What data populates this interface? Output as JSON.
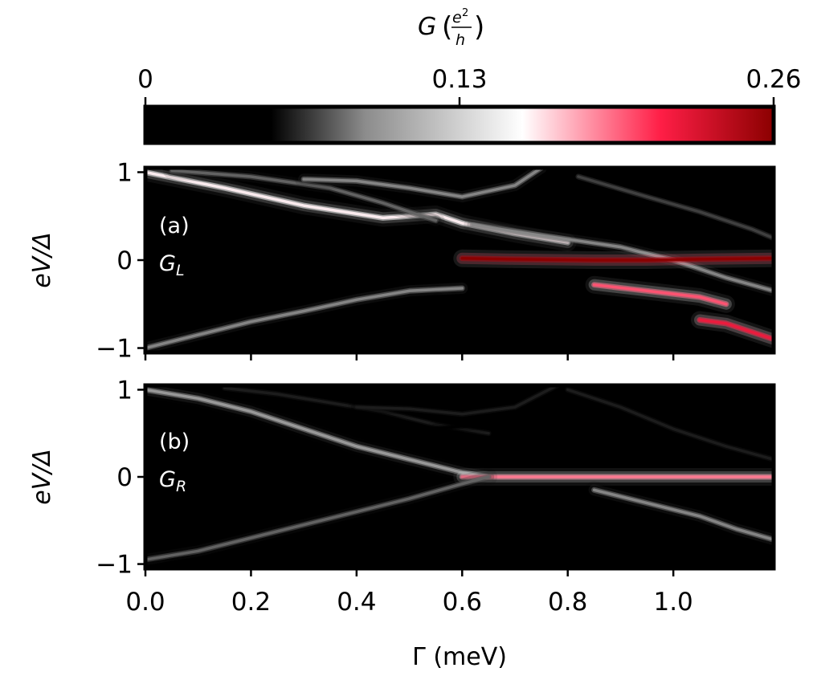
{
  "chart_data": [
    {
      "type": "heatmap",
      "panel_label": "(a)",
      "title": "G_L",
      "title_main": "G",
      "title_sub": "L",
      "xlabel": "Γ (meV)",
      "ylabel": "eV/Δ",
      "xlim": [
        0.0,
        1.19
      ],
      "ylim": [
        -1.05,
        1.05
      ],
      "xticks": [
        0.0,
        0.2,
        0.4,
        0.6,
        0.8,
        1.0
      ],
      "yticks": [
        -1,
        0,
        1
      ],
      "ytick_labels": [
        "−1",
        "0",
        "1"
      ],
      "peaks": [
        {
          "name": "top-left-branch-a",
          "points": [
            [
              0.0,
              1.0
            ],
            [
              0.15,
              0.82
            ],
            [
              0.3,
              0.62
            ],
            [
              0.45,
              0.48
            ],
            [
              0.55,
              0.52
            ],
            [
              0.6,
              0.42
            ],
            [
              0.7,
              0.3
            ],
            [
              0.8,
              0.2
            ]
          ],
          "amp": 0.16
        },
        {
          "name": "top-left-branch-b",
          "points": [
            [
              0.05,
              1.02
            ],
            [
              0.2,
              0.95
            ],
            [
              0.35,
              0.82
            ],
            [
              0.45,
              0.65
            ],
            [
              0.55,
              0.45
            ]
          ],
          "amp": 0.08
        },
        {
          "name": "top-branch-c",
          "points": [
            [
              0.3,
              0.92
            ],
            [
              0.4,
              0.9
            ],
            [
              0.5,
              0.82
            ],
            [
              0.6,
              0.72
            ],
            [
              0.7,
              0.85
            ],
            [
              0.75,
              1.05
            ]
          ],
          "amp": 0.09
        },
        {
          "name": "top-branch-d",
          "points": [
            [
              0.62,
              0.4
            ],
            [
              0.75,
              0.28
            ],
            [
              0.9,
              0.15
            ],
            [
              1.0,
              0.0
            ],
            [
              1.1,
              -0.2
            ],
            [
              1.19,
              -0.35
            ]
          ],
          "amp": 0.09
        },
        {
          "name": "upper-right-arc",
          "points": [
            [
              0.82,
              0.95
            ],
            [
              0.95,
              0.72
            ],
            [
              1.05,
              0.55
            ],
            [
              1.15,
              0.35
            ],
            [
              1.19,
              0.25
            ]
          ],
          "amp": 0.07
        },
        {
          "name": "zero-mode-a",
          "points": [
            [
              0.6,
              0.02
            ],
            [
              0.7,
              0.01
            ],
            [
              0.85,
              0.0
            ],
            [
              0.95,
              0.0
            ],
            [
              1.05,
              0.01
            ],
            [
              1.19,
              0.02
            ]
          ],
          "amp": 0.26
        },
        {
          "name": "lower-right-branch",
          "points": [
            [
              0.85,
              -0.28
            ],
            [
              0.95,
              -0.35
            ],
            [
              1.05,
              -0.42
            ],
            [
              1.1,
              -0.5
            ]
          ],
          "amp": 0.2
        },
        {
          "name": "lower-right-tail",
          "points": [
            [
              1.05,
              -0.68
            ],
            [
              1.1,
              -0.72
            ],
            [
              1.15,
              -0.82
            ],
            [
              1.19,
              -0.9
            ]
          ],
          "amp": 0.22
        },
        {
          "name": "bottom-branch-a",
          "points": [
            [
              0.0,
              -1.0
            ],
            [
              0.1,
              -0.85
            ],
            [
              0.2,
              -0.7
            ],
            [
              0.3,
              -0.58
            ],
            [
              0.4,
              -0.45
            ],
            [
              0.5,
              -0.35
            ],
            [
              0.6,
              -0.32
            ]
          ],
          "amp": 0.09
        },
        {
          "name": "bottom-branch-b",
          "points": [
            [
              0.15,
              -1.0
            ],
            [
              0.25,
              -0.85
            ],
            [
              0.35,
              -0.7
            ],
            [
              0.45,
              -0.55
            ],
            [
              0.55,
              -0.45
            ]
          ],
          "amp": 0.05
        }
      ]
    },
    {
      "type": "heatmap",
      "panel_label": "(b)",
      "title": "G_R",
      "title_main": "G",
      "title_sub": "R",
      "xlabel": "Γ (meV)",
      "ylabel": "eV/Δ",
      "xlim": [
        0.0,
        1.19
      ],
      "ylim": [
        -1.05,
        1.05
      ],
      "xticks": [
        0.0,
        0.2,
        0.4,
        0.6,
        0.8,
        1.0
      ],
      "xtick_labels": [
        "0.0",
        "0.2",
        "0.4",
        "0.6",
        "0.8",
        "1.0"
      ],
      "yticks": [
        -1,
        0,
        1
      ],
      "ytick_labels": [
        "−1",
        "0",
        "1"
      ],
      "peaks": [
        {
          "name": "top-left-branch-a",
          "points": [
            [
              0.0,
              1.0
            ],
            [
              0.1,
              0.9
            ],
            [
              0.2,
              0.75
            ],
            [
              0.3,
              0.55
            ],
            [
              0.4,
              0.35
            ],
            [
              0.5,
              0.2
            ],
            [
              0.6,
              0.05
            ],
            [
              0.65,
              0.0
            ]
          ],
          "amp": 0.1
        },
        {
          "name": "top-left-branch-b",
          "points": [
            [
              0.15,
              1.02
            ],
            [
              0.25,
              0.95
            ],
            [
              0.35,
              0.85
            ],
            [
              0.45,
              0.75
            ],
            [
              0.55,
              0.6
            ],
            [
              0.65,
              0.5
            ]
          ],
          "amp": 0.06
        },
        {
          "name": "top-branch-c",
          "points": [
            [
              0.4,
              0.8
            ],
            [
              0.5,
              0.78
            ],
            [
              0.6,
              0.72
            ],
            [
              0.7,
              0.8
            ],
            [
              0.78,
              1.05
            ]
          ],
          "amp": 0.06
        },
        {
          "name": "top-branch-d",
          "points": [
            [
              0.55,
              0.55
            ],
            [
              0.65,
              0.62
            ],
            [
              0.75,
              0.72
            ],
            [
              0.85,
              0.9
            ],
            [
              0.9,
              1.0
            ]
          ],
          "amp": 0.05
        },
        {
          "name": "upper-right-arc",
          "points": [
            [
              0.8,
              1.0
            ],
            [
              0.9,
              0.8
            ],
            [
              1.0,
              0.55
            ],
            [
              1.1,
              0.35
            ],
            [
              1.19,
              0.2
            ]
          ],
          "amp": 0.06
        },
        {
          "name": "upper-right-short",
          "points": [
            [
              1.1,
              0.7
            ],
            [
              1.15,
              0.72
            ],
            [
              1.19,
              0.75
            ]
          ],
          "amp": 0.05
        },
        {
          "name": "zero-mode-b",
          "points": [
            [
              0.6,
              0.0
            ],
            [
              0.7,
              0.0
            ],
            [
              0.85,
              0.0
            ],
            [
              0.95,
              0.0
            ],
            [
              1.05,
              0.0
            ],
            [
              1.19,
              0.0
            ]
          ],
          "amp": 0.19
        },
        {
          "name": "lower-right-branch",
          "points": [
            [
              0.85,
              -0.15
            ],
            [
              0.95,
              -0.3
            ],
            [
              1.05,
              -0.45
            ],
            [
              1.12,
              -0.6
            ],
            [
              1.19,
              -0.72
            ]
          ],
          "amp": 0.09
        },
        {
          "name": "bottom-branch-a",
          "points": [
            [
              0.0,
              -0.95
            ],
            [
              0.1,
              -0.85
            ],
            [
              0.2,
              -0.7
            ],
            [
              0.3,
              -0.55
            ],
            [
              0.4,
              -0.4
            ],
            [
              0.5,
              -0.25
            ],
            [
              0.6,
              -0.08
            ],
            [
              0.65,
              0.0
            ]
          ],
          "amp": 0.08
        },
        {
          "name": "bottom-branch-b",
          "points": [
            [
              0.05,
              -1.02
            ],
            [
              0.2,
              -0.98
            ],
            [
              0.35,
              -0.92
            ],
            [
              0.5,
              -0.85
            ],
            [
              0.6,
              -0.8
            ]
          ],
          "amp": 0.04
        }
      ]
    }
  ],
  "colorbar": {
    "label_main": "G",
    "label_frac_num": "e",
    "label_frac_sup": "2",
    "label_frac_den": "h",
    "min": 0,
    "max": 0.26,
    "ticks": [
      0,
      0.13,
      0.26
    ],
    "tick_labels": [
      "0",
      "0.13",
      "0.26"
    ],
    "colormap": [
      {
        "value": 0.0,
        "color": "#000000"
      },
      {
        "value": 0.2,
        "color": "#000000"
      },
      {
        "value": 0.35,
        "color": "#8c8c8c"
      },
      {
        "value": 0.6,
        "color": "#ffffff"
      },
      {
        "value": 0.82,
        "color": "#ff1e46"
      },
      {
        "value": 1.0,
        "color": "#8b0000"
      }
    ]
  },
  "colors": {
    "background": "#ffffff",
    "axis": "#000000",
    "panel_text": "#ffffff"
  }
}
